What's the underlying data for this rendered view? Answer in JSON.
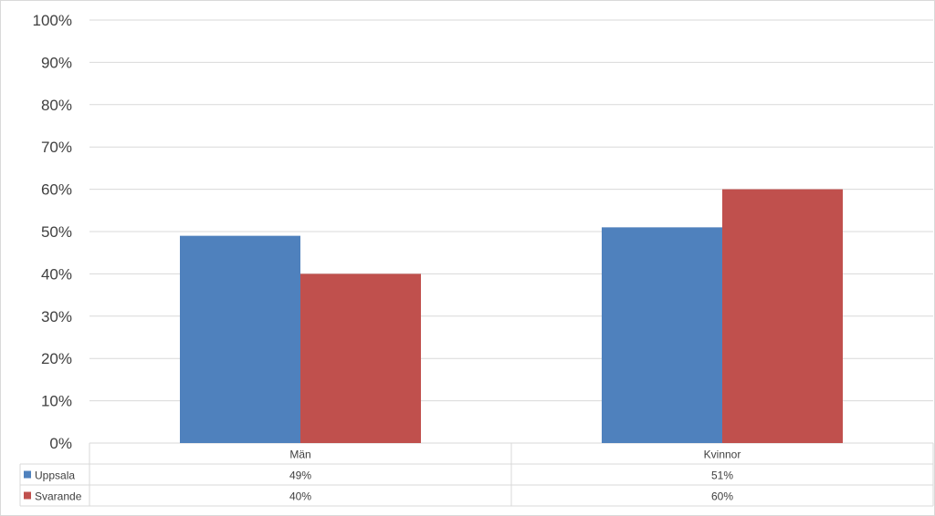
{
  "chart_data": {
    "type": "bar",
    "categories": [
      "Män",
      "Kvinnor"
    ],
    "series": [
      {
        "name": "Uppsala",
        "values": [
          49,
          51
        ],
        "labels": [
          "49%",
          "51%"
        ],
        "color": "#4f81bd"
      },
      {
        "name": "Svarande",
        "values": [
          40,
          60
        ],
        "labels": [
          "40%",
          "60%"
        ],
        "color": "#c0504d"
      }
    ],
    "ylim": [
      0,
      100
    ],
    "yticks": [
      "0%",
      "10%",
      "20%",
      "30%",
      "40%",
      "50%",
      "60%",
      "70%",
      "80%",
      "90%",
      "100%"
    ],
    "grid": true,
    "legend": "data table below chart"
  }
}
